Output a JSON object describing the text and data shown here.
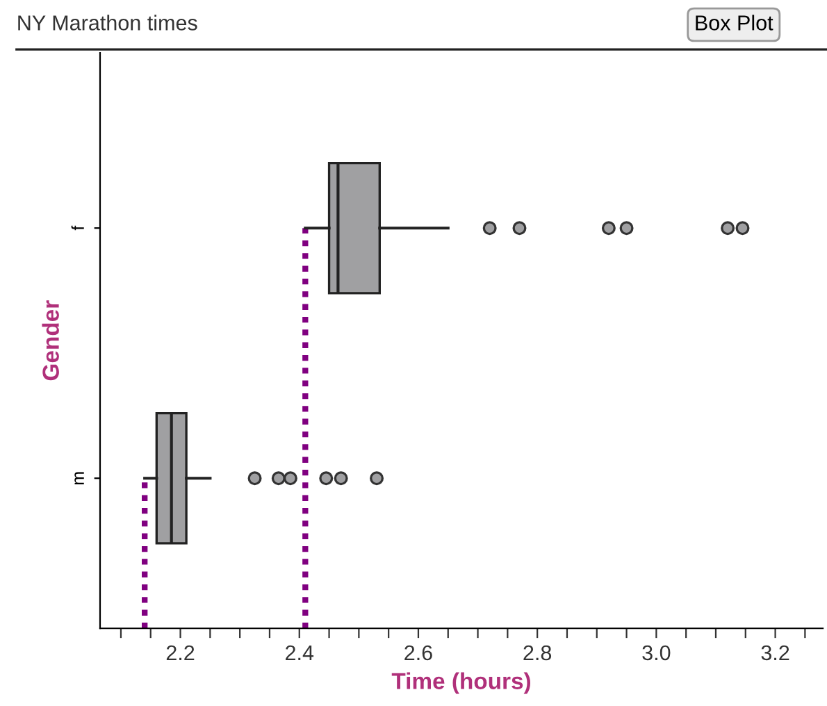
{
  "chart_data": {
    "type": "box",
    "title": "NY Marathon times",
    "xlabel": "Time (hours)",
    "ylabel": "Gender",
    "orientation": "horizontal",
    "categories": [
      "f",
      "m"
    ],
    "boxes": [
      {
        "low": 2.41,
        "q1": 2.45,
        "median": 2.465,
        "q3": 2.535,
        "high": 2.65,
        "outliers": [
          2.72,
          2.77,
          2.92,
          2.95,
          3.12,
          3.145
        ]
      },
      {
        "low": 2.14,
        "q1": 2.16,
        "median": 2.185,
        "q3": 2.21,
        "high": 2.25,
        "outliers": [
          2.325,
          2.365,
          2.385,
          2.445,
          2.47,
          2.53
        ]
      }
    ],
    "colors": [
      "#a0a0a2",
      "#a0a0a2"
    ],
    "xlim": [
      2.065,
      3.28
    ],
    "xticks": [
      {
        "value": 2.1,
        "label": null
      },
      {
        "value": 2.15,
        "label": null
      },
      2.2,
      {
        "value": 2.25,
        "label": null
      },
      {
        "value": 2.3,
        "label": null
      },
      {
        "value": 2.35,
        "label": null
      },
      2.4,
      {
        "value": 2.45,
        "label": null
      },
      {
        "value": 2.5,
        "label": null
      },
      {
        "value": 2.55,
        "label": null
      },
      2.6,
      {
        "value": 2.65,
        "label": null
      },
      {
        "value": 2.7,
        "label": null
      },
      {
        "value": 2.75,
        "label": null
      },
      2.8,
      {
        "value": 2.85,
        "label": null
      },
      {
        "value": 2.9,
        "label": null
      },
      {
        "value": 2.95,
        "label": null
      },
      {
        "value": 3.0,
        "label": "3.0"
      },
      {
        "value": 3.05,
        "label": null
      },
      {
        "value": 3.1,
        "label": null
      },
      {
        "value": 3.15,
        "label": null
      },
      3.2,
      {
        "value": 3.25,
        "label": null
      }
    ],
    "ref_lines": [
      {
        "axis": "x",
        "value": 2.14,
        "color": "#800080",
        "line_style": "dotted"
      },
      {
        "axis": "x",
        "value": 2.41,
        "color": "#800080",
        "line_style": "dotted"
      }
    ],
    "annotations": [
      "Box Plot"
    ],
    "grid": false
  }
}
